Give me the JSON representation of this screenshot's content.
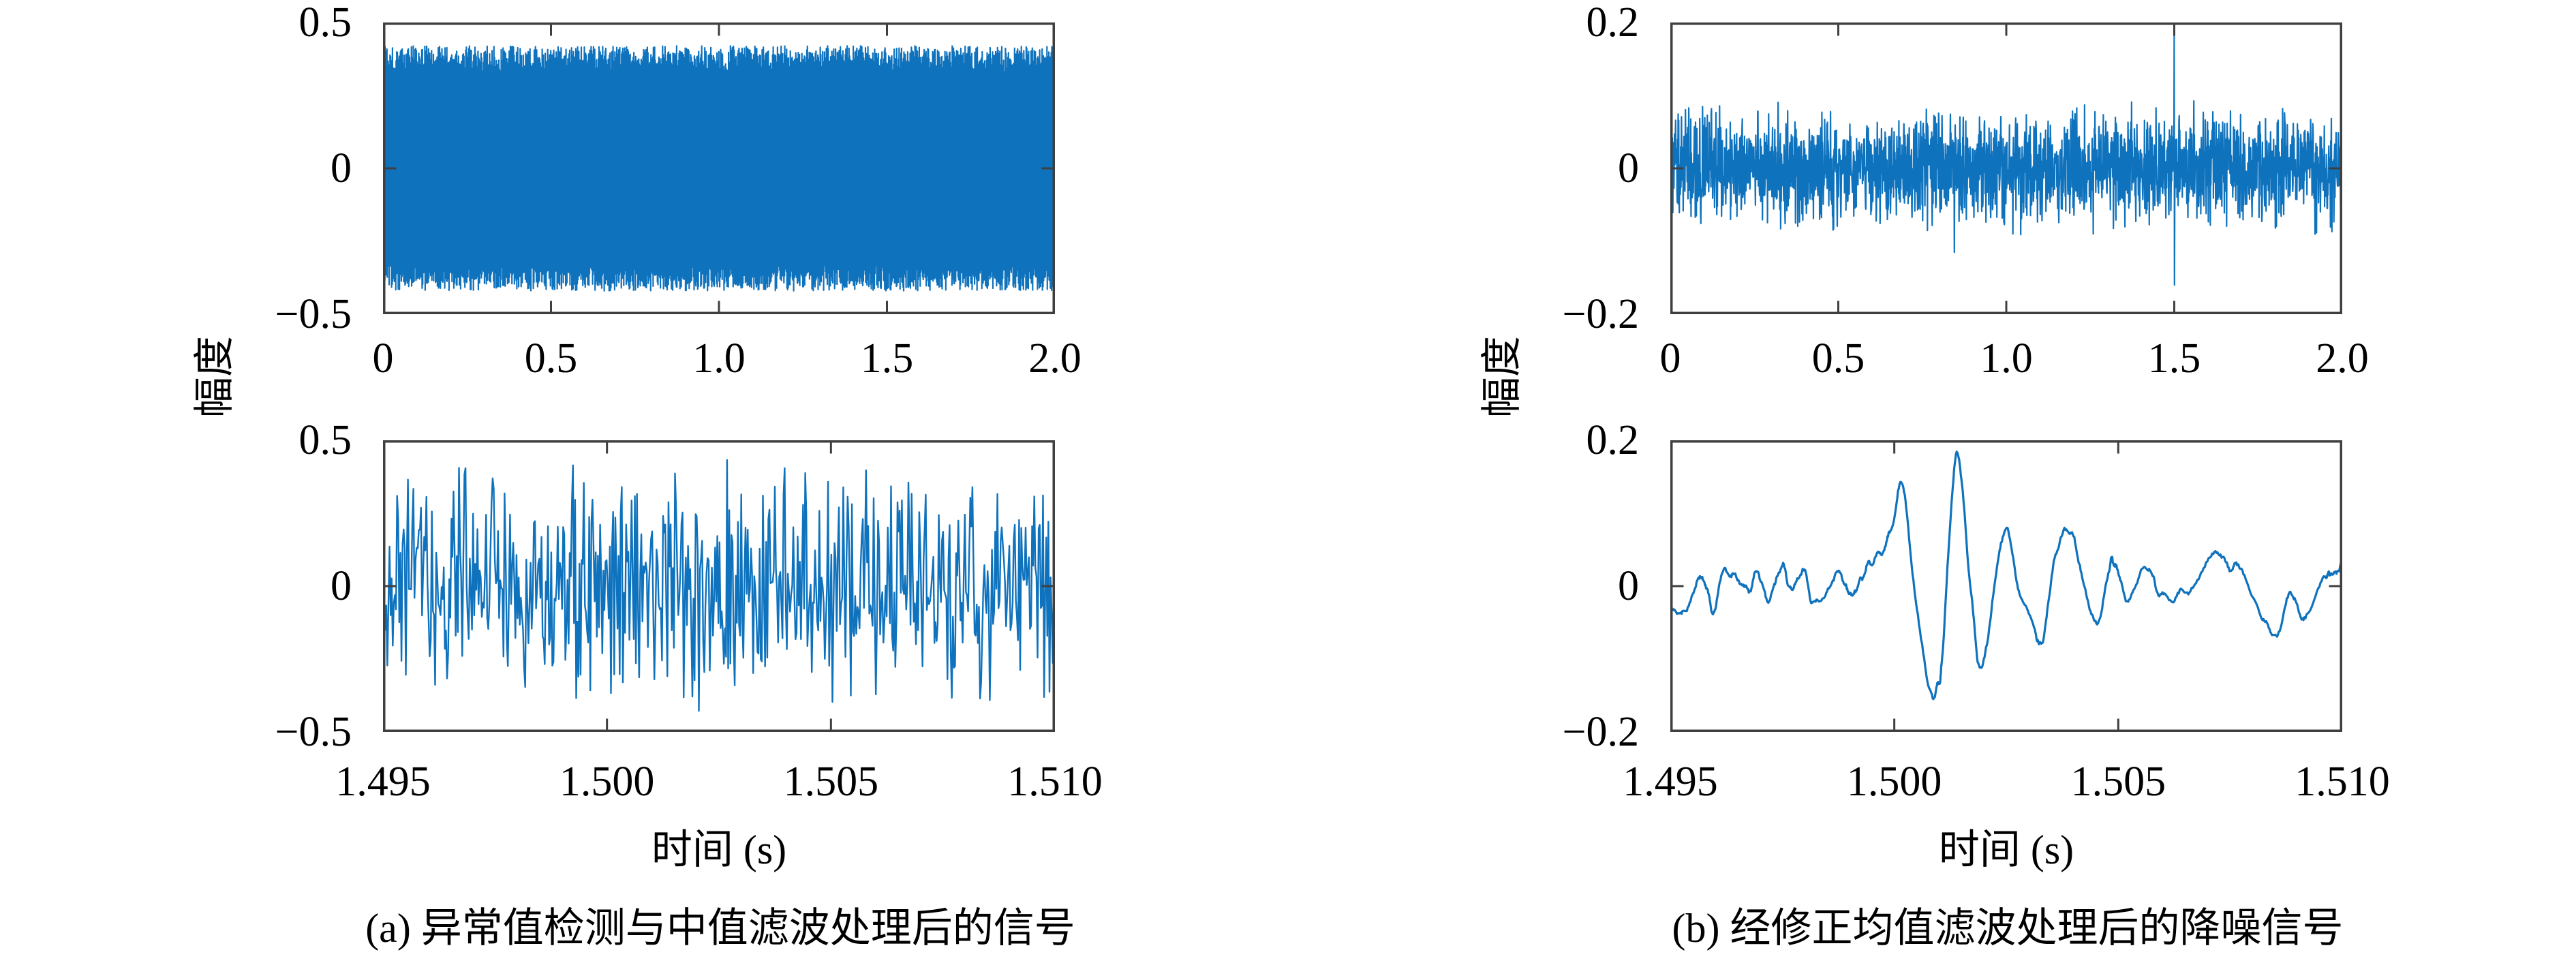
{
  "style": {
    "background": "#ffffff",
    "line_color": "#0f72bd",
    "axis_color": "#3f3f3f",
    "text_color": "#000000"
  },
  "columns": [
    {
      "id": "a",
      "ylabel": "幅度",
      "xlabel": "时间 (s)",
      "caption": "(a) 异常值检测与中值滤波处理后的信号"
    },
    {
      "id": "b",
      "ylabel": "幅度",
      "xlabel": "时间 (s)",
      "caption": "(b) 经修正均值滤波处理后的降噪信号"
    }
  ],
  "chart_data": [
    {
      "id": "a1",
      "column": 0,
      "row": 0,
      "type": "line",
      "title": "",
      "xlabel": "",
      "ylabel": "幅度",
      "x_axis": {
        "lim": [
          0,
          2.0
        ],
        "tick_values": [
          0,
          0.5,
          1.0,
          1.5,
          2.0
        ],
        "tick_labels": [
          "0",
          "0.5",
          "1.0",
          "1.5",
          "2.0"
        ]
      },
      "y_axis": {
        "lim": [
          -0.5,
          0.5
        ],
        "tick_values": [
          0.5,
          0,
          -0.5
        ],
        "tick_labels": [
          "0.5",
          "0",
          "−0.5"
        ]
      },
      "style": {
        "color": "#0f72bd",
        "width": 2.2
      },
      "grid": false,
      "legend": null,
      "signal": {
        "generator": "alt_noise_band",
        "summary": "Dense zero-mean broadband noise filling a solid band of about ±0.40 (ragged edges to ±0.42) across the full 0–2 s record",
        "n": 2200,
        "seed": 101,
        "amp_min": 0.33,
        "amp_max": 0.42
      }
    },
    {
      "id": "a2",
      "column": 0,
      "row": 1,
      "type": "line",
      "title": "",
      "xlabel": "时间 (s)",
      "ylabel": "幅度",
      "x_axis": {
        "lim": [
          1.495,
          1.51
        ],
        "tick_values": [
          1.495,
          1.5,
          1.505,
          1.51
        ],
        "tick_labels": [
          "1.495",
          "1.500",
          "1.505",
          "1.510"
        ]
      },
      "y_axis": {
        "lim": [
          -0.5,
          0.5
        ],
        "tick_values": [
          0.5,
          0,
          -0.5
        ],
        "tick_labels": [
          "0.5",
          "0",
          "−0.5"
        ]
      },
      "style": {
        "color": "#0f72bd",
        "width": 2.4
      },
      "grid": false,
      "legend": null,
      "signal": {
        "generator": "tri_noise",
        "summary": "Zoom of the same noisy signal between 1.495 s and 1.510 s: random fluctuations around 0, mostly within ±0.25, frequent excursions to about ±0.42",
        "n": 620,
        "seed": 202,
        "amp": 0.44
      }
    },
    {
      "id": "b1",
      "column": 1,
      "row": 0,
      "type": "line",
      "title": "",
      "xlabel": "",
      "ylabel": "幅度",
      "x_axis": {
        "lim": [
          0,
          2.0
        ],
        "tick_values": [
          0,
          0.5,
          1.0,
          1.5,
          2.0
        ],
        "tick_labels": [
          "0",
          "0.5",
          "1.0",
          "1.5",
          "2.0"
        ]
      },
      "y_axis": {
        "lim": [
          -0.2,
          0.2
        ],
        "tick_values": [
          0.2,
          0,
          -0.2
        ],
        "tick_labels": [
          "0.2",
          "0",
          "−0.2"
        ]
      },
      "style": {
        "color": "#0f72bd",
        "width": 2.2
      },
      "grid": false,
      "legend": null,
      "signal": {
        "generator": "gauss_noise",
        "summary": "Low-level residual noise, dense core ≈ ±0.05 with excursions to ±0.09; isolated spikes: +0.185 and −0.16 near t = 1.5 s, −0.115 near t = 0.85 s, −0.09 near t = 1.02 s",
        "n": 2400,
        "seed": 303,
        "amp": 0.1,
        "spikes": [
          [
            0.845,
            -0.115
          ],
          [
            1.02,
            -0.09
          ],
          [
            1.4995,
            0.185
          ],
          [
            1.5006,
            -0.16
          ]
        ]
      }
    },
    {
      "id": "b2",
      "column": 1,
      "row": 1,
      "type": "line",
      "title": "",
      "xlabel": "时间 (s)",
      "ylabel": "幅度",
      "x_axis": {
        "lim": [
          1.495,
          1.51
        ],
        "tick_values": [
          1.495,
          1.5,
          1.505,
          1.51
        ],
        "tick_labels": [
          "1.495",
          "1.500",
          "1.505",
          "1.510"
        ]
      },
      "y_axis": {
        "lim": [
          -0.2,
          0.2
        ],
        "tick_values": [
          0.2,
          0,
          -0.2
        ],
        "tick_labels": [
          "0.2",
          "0",
          "−0.2"
        ]
      },
      "style": {
        "color": "#0f72bd",
        "width": 3.2
      },
      "grid": false,
      "legend": null,
      "signal": {
        "generator": "smooth_keypoints",
        "summary": "Denoised smooth waveform: quiet baseline ±0.03 until ≈1.4995 s, then damped oscillation with first peak +0.14 @1.5002 s, trough −0.153 @1.5008 s, main peak +0.182 @1.5014 s, decaying ripples (+0.084, −0.072, +0.08, −0.044 …) settling back to ±0.04 by 1.510 s",
        "n": 900,
        "seed": 404,
        "jitter": 0.05,
        "keypoints": [
          [
            1.495,
            -0.026
          ],
          [
            1.4953,
            -0.039
          ],
          [
            1.49555,
            -0.005
          ],
          [
            1.49575,
            0.005
          ],
          [
            1.49595,
            -0.034
          ],
          [
            1.49615,
            0.013
          ],
          [
            1.49645,
            0.022
          ],
          [
            1.4967,
            -0.013
          ],
          [
            1.49695,
            0.019
          ],
          [
            1.4972,
            -0.026
          ],
          [
            1.49745,
            0.024
          ],
          [
            1.4977,
            -0.012
          ],
          [
            1.49795,
            0.018
          ],
          [
            1.4982,
            -0.022
          ],
          [
            1.4985,
            -0.005
          ],
          [
            1.4988,
            0.015
          ],
          [
            1.499,
            -0.01
          ],
          [
            1.4992,
            0.005
          ],
          [
            1.49945,
            0.026
          ],
          [
            1.4997,
            0.042
          ],
          [
            1.4999,
            0.065
          ],
          [
            1.50018,
            0.14
          ],
          [
            1.50045,
            0.0
          ],
          [
            1.50081,
            -0.153
          ],
          [
            1.501,
            -0.125
          ],
          [
            1.5011,
            -0.08
          ],
          [
            1.50139,
            0.182
          ],
          [
            1.5017,
            0.0
          ],
          [
            1.50192,
            -0.108
          ],
          [
            1.5022,
            -0.02
          ],
          [
            1.5025,
            0.084
          ],
          [
            1.5028,
            -0.01
          ],
          [
            1.5031,
            -0.055
          ],
          [
            1.50333,
            -0.072
          ],
          [
            1.5036,
            0.04
          ],
          [
            1.50393,
            0.08
          ],
          [
            1.5042,
            0.01
          ],
          [
            1.50451,
            -0.044
          ],
          [
            1.5048,
            0.02
          ],
          [
            1.50495,
            0.039
          ],
          [
            1.50522,
            -0.028
          ],
          [
            1.50556,
            0.028
          ],
          [
            1.5059,
            -0.012
          ],
          [
            1.5063,
            -0.014
          ],
          [
            1.5067,
            0.01
          ],
          [
            1.50715,
            0.034
          ],
          [
            1.5075,
            0.028
          ],
          [
            1.50776,
            0.015
          ],
          [
            1.5082,
            -0.04
          ],
          [
            1.50852,
            -0.065
          ],
          [
            1.50885,
            -0.015
          ],
          [
            1.50918,
            -0.037
          ],
          [
            1.50962,
            0.011
          ],
          [
            1.50975,
            0.023
          ],
          [
            1.51,
            0.035
          ]
        ]
      }
    }
  ]
}
